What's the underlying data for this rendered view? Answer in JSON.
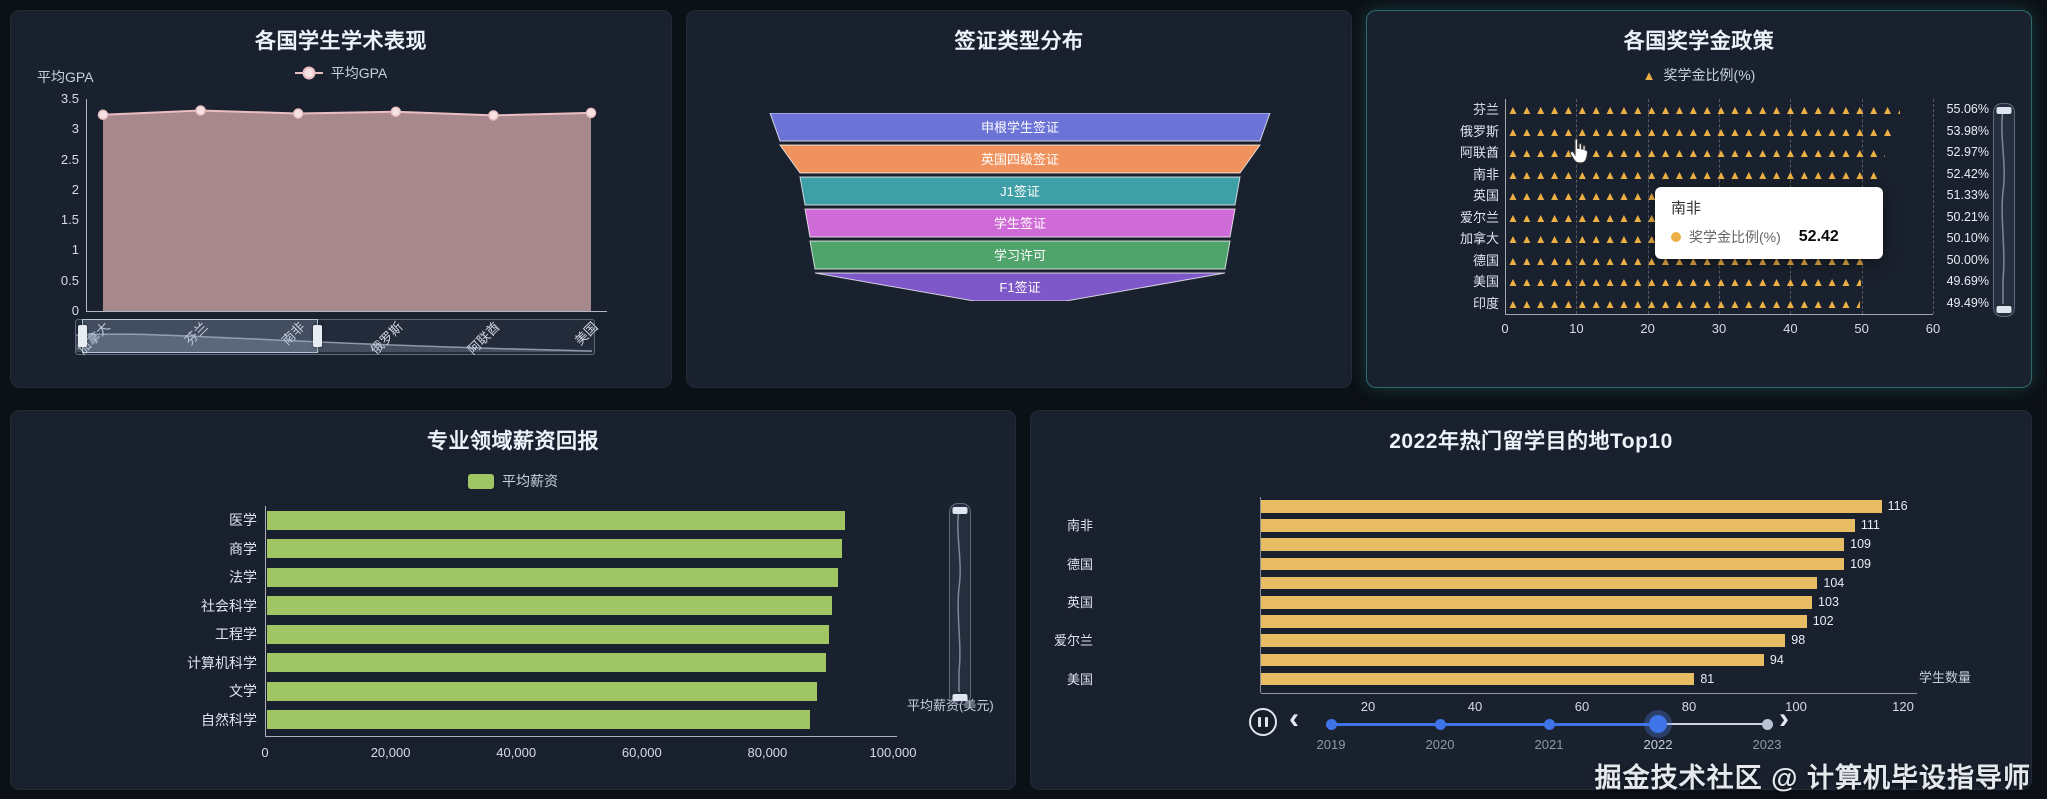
{
  "page": {
    "watermark": "掘金技术社区 @ 计算机毕设指导师"
  },
  "panels": {
    "gpa": {
      "title": "各国学生学术表现",
      "axis_name": "平均GPA",
      "legend": "平均GPA"
    },
    "visa": {
      "title": "签证类型分布"
    },
    "scholarship": {
      "title": "各国奖学金政策",
      "legend": "奖学金比例(%)",
      "legend_icon": "▲",
      "tooltip": {
        "title": "南非",
        "series": "奖学金比例(%)",
        "value": "52.42"
      }
    },
    "salary": {
      "title": "专业领域薪资回报",
      "legend": "平均薪资",
      "axis_name": "平均薪资(美元)"
    },
    "destinations": {
      "title": "2022年热门留学目的地Top10",
      "axis_name": "学生数量",
      "timeline_prev": "‹",
      "timeline_next": "›"
    }
  },
  "chart_data": [
    {
      "id": "gpa",
      "type": "line",
      "title": "各国学生学术表现",
      "categories": [
        "加拿大",
        "芬兰",
        "南非",
        "俄罗斯",
        "阿联酋",
        "美国"
      ],
      "series": [
        {
          "name": "平均GPA",
          "values": [
            3.24,
            3.31,
            3.26,
            3.29,
            3.23,
            3.27
          ]
        }
      ],
      "y_ticks": [
        3.5,
        3,
        2.5,
        2,
        1.5,
        1,
        0.5,
        0
      ],
      "ylim": [
        0,
        3.5
      ],
      "area": true,
      "colors": {
        "area": "#c79fa1",
        "line": "#e9bfc2"
      }
    },
    {
      "id": "visa",
      "type": "funnel",
      "title": "签证类型分布",
      "items": [
        {
          "label": "申根学生签证",
          "value": 100,
          "color": "#6b73d6"
        },
        {
          "label": "英国四级签证",
          "value": 96,
          "color": "#ef925d"
        },
        {
          "label": "J1签证",
          "value": 88,
          "color": "#3f9fa6"
        },
        {
          "label": "学生签证",
          "value": 86,
          "color": "#cf6bd6"
        },
        {
          "label": "学习许可",
          "value": 84,
          "color": "#4fa36b"
        },
        {
          "label": "F1签证",
          "value": 82,
          "color": "#7e57c8"
        }
      ]
    },
    {
      "id": "scholarship",
      "type": "pictorial-bar",
      "title": "各国奖学金政策",
      "series_name": "奖学金比例(%)",
      "categories": [
        "芬兰",
        "俄罗斯",
        "阿联酋",
        "南非",
        "英国",
        "爱尔兰",
        "加拿大",
        "德国",
        "美国",
        "印度"
      ],
      "values": [
        55.06,
        53.98,
        52.97,
        52.42,
        51.33,
        50.21,
        50.1,
        50.0,
        49.69,
        49.49
      ],
      "labels": [
        "55.06%",
        "53.98%",
        "52.97%",
        "52.42%",
        "51.33%",
        "50.21%",
        "50.10%",
        "50.00%",
        "49.69%",
        "49.49%"
      ],
      "x_ticks": [
        0,
        10,
        20,
        30,
        40,
        50,
        60
      ],
      "xlim": [
        0,
        60
      ],
      "color": "#edb044",
      "tooltip": {
        "title": "南非",
        "series": "奖学金比例(%)",
        "value": "52.42"
      }
    },
    {
      "id": "salary",
      "type": "bar",
      "title": "专业领域薪资回报",
      "series_name": "平均薪资",
      "categories": [
        "医学",
        "商学",
        "法学",
        "社会科学",
        "工程学",
        "计算机科学",
        "文学",
        "自然科学"
      ],
      "values": [
        92000,
        91500,
        91000,
        90000,
        89500,
        89000,
        87500,
        86500
      ],
      "x_tick_labels": [
        "0",
        "20,000",
        "40,000",
        "60,000",
        "80,000",
        "100,000"
      ],
      "xlim": [
        0,
        100000
      ],
      "xname": "平均薪资(美元)",
      "color": "#a0c565"
    },
    {
      "id": "destinations",
      "type": "bar",
      "title": "2022年热门留学目的地Top10",
      "categories": [
        "",
        "南非",
        "",
        "德国",
        "",
        "英国",
        "",
        "爱尔兰",
        "",
        "美国"
      ],
      "values": [
        116,
        111,
        109,
        109,
        104,
        103,
        102,
        98,
        94,
        81
      ],
      "x_ticks": [
        20,
        40,
        60,
        80,
        100,
        120
      ],
      "xlim": [
        0,
        120
      ],
      "xname": "学生数量",
      "color": "#e9bd63",
      "timeline": {
        "years": [
          "2019",
          "2020",
          "2021",
          "2022",
          "2023"
        ],
        "current": "2022"
      }
    }
  ]
}
